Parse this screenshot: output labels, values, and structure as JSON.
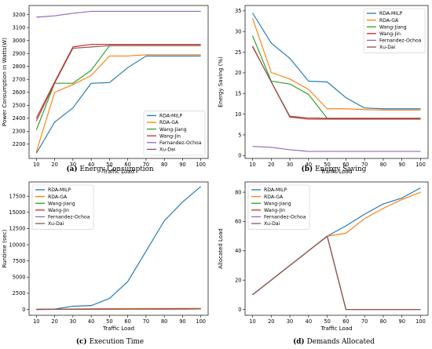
{
  "series_colors": {
    "RDA-MILP": "#1f77b4",
    "RDA-GA": "#ff7f0e",
    "Wang-Jiang": "#2ca02c",
    "Wang-Jin": "#d62728",
    "Fernandez-Ochoa": "#9467bd",
    "Xu-Dai": "#8c564b"
  },
  "chart_data": [
    {
      "type": "line",
      "caption_letter": "(a)",
      "caption_text": "Energy Consumption",
      "xlabel": "Traffic Load",
      "ylabel": "Power Consumption in Watts(W)",
      "x": [
        10,
        20,
        30,
        40,
        50,
        60,
        70,
        80,
        90,
        100
      ],
      "xlim": [
        6,
        104
      ],
      "ylim": [
        2090,
        3270
      ],
      "yticks": [
        2200,
        2300,
        2400,
        2500,
        2600,
        2700,
        2800,
        2900,
        3000,
        3100,
        3200
      ],
      "legend_position": "lower right",
      "series": [
        {
          "name": "RDA-MILP",
          "values": [
            2130,
            2370,
            2480,
            2670,
            2675,
            2790,
            2880,
            2880,
            2880,
            2880
          ]
        },
        {
          "name": "RDA-GA",
          "values": [
            2140,
            2600,
            2660,
            2730,
            2880,
            2880,
            2890,
            2890,
            2890,
            2890
          ]
        },
        {
          "name": "Wang-Jiang",
          "values": [
            2310,
            2670,
            2670,
            2770,
            2960,
            2960,
            2960,
            2960,
            2960,
            2960
          ]
        },
        {
          "name": "Wang-Jin",
          "values": [
            2400,
            2680,
            2950,
            2970,
            2970,
            2970,
            2970,
            2970,
            2970,
            2970
          ]
        },
        {
          "name": "Fernandez-Ochoa",
          "values": [
            3180,
            3190,
            3210,
            3225,
            3225,
            3225,
            3225,
            3225,
            3225,
            3225
          ]
        },
        {
          "name": "Xu-Dai",
          "values": [
            2380,
            2670,
            2940,
            2950,
            2960,
            2960,
            2960,
            2960,
            2960,
            2960
          ]
        }
      ]
    },
    {
      "type": "line",
      "caption_letter": "(b)",
      "caption_text": "Energy Saving",
      "xlabel": "Traffic Load",
      "ylabel": "Energy Saving (%)",
      "x": [
        10,
        20,
        30,
        40,
        50,
        60,
        70,
        80,
        90,
        100
      ],
      "xlim": [
        6,
        104
      ],
      "ylim": [
        -0.7,
        36.3
      ],
      "yticks": [
        0,
        5,
        10,
        15,
        20,
        25,
        30,
        35
      ],
      "legend_position": "upper right",
      "series": [
        {
          "name": "RDA-MILP",
          "values": [
            34.5,
            27.2,
            23.5,
            18.0,
            17.8,
            14.0,
            11.5,
            11.3,
            11.3,
            11.3
          ]
        },
        {
          "name": "RDA-GA",
          "values": [
            33.2,
            20.1,
            18.5,
            16.0,
            11.3,
            11.3,
            11.1,
            11.0,
            11.0,
            11.0
          ]
        },
        {
          "name": "Wang-Jiang",
          "values": [
            29.0,
            18.0,
            17.3,
            14.8,
            9.0,
            9.0,
            9.0,
            9.0,
            9.0,
            9.0
          ]
        },
        {
          "name": "Wang-Jin",
          "values": [
            26.5,
            17.8,
            9.3,
            8.8,
            8.8,
            8.8,
            8.8,
            8.8,
            8.8,
            8.8
          ]
        },
        {
          "name": "Fernandez-Ochoa",
          "values": [
            2.2,
            2.0,
            1.4,
            1.0,
            1.0,
            1.0,
            1.0,
            1.0,
            1.0,
            1.0
          ]
        },
        {
          "name": "Xu-Dai",
          "values": [
            26.3,
            17.9,
            9.5,
            9.1,
            9.0,
            9.0,
            9.0,
            9.0,
            9.0,
            9.0
          ]
        }
      ]
    },
    {
      "type": "line",
      "caption_letter": "(c)",
      "caption_text": "Execution Time",
      "xlabel": "Traffic Load",
      "ylabel": "Runtime (sec)",
      "x": [
        10,
        20,
        30,
        40,
        50,
        60,
        70,
        80,
        90,
        100
      ],
      "xlim": [
        6,
        104
      ],
      "ylim": [
        -900,
        19700
      ],
      "yticks": [
        0,
        2500,
        5000,
        7500,
        10000,
        12500,
        15000,
        17500
      ],
      "legend_position": "upper left",
      "series": [
        {
          "name": "RDA-MILP",
          "values": [
            20,
            60,
            500,
            600,
            1700,
            4300,
            9000,
            13700,
            16600,
            19000
          ]
        },
        {
          "name": "RDA-GA",
          "values": [
            20,
            40,
            80,
            110,
            140,
            140,
            150,
            150,
            160,
            160
          ]
        },
        {
          "name": "Wang-Jiang",
          "values": [
            10,
            20,
            30,
            40,
            60,
            60,
            70,
            70,
            80,
            80
          ]
        },
        {
          "name": "Wang-Jin",
          "values": [
            10,
            20,
            30,
            40,
            50,
            60,
            60,
            70,
            70,
            80
          ]
        },
        {
          "name": "Fernandez-Ochoa",
          "values": [
            10,
            20,
            30,
            40,
            50,
            60,
            60,
            70,
            70,
            80
          ]
        },
        {
          "name": "Xu-Dai",
          "values": [
            10,
            20,
            30,
            40,
            50,
            60,
            60,
            70,
            70,
            80
          ]
        }
      ]
    },
    {
      "type": "line",
      "caption_letter": "(d)",
      "caption_text": "Demands Allocated",
      "xlabel": "Traffic Load",
      "ylabel": "Allocated Load",
      "x": [
        10,
        20,
        30,
        40,
        50,
        60,
        70,
        80,
        90,
        100
      ],
      "xlim": [
        6,
        104
      ],
      "ylim": [
        -4,
        87
      ],
      "yticks": [
        0,
        20,
        40,
        60,
        80
      ],
      "legend_position": "upper left",
      "series": [
        {
          "name": "RDA-MILP",
          "values": [
            10,
            20,
            30,
            40,
            50,
            57,
            65,
            72,
            76,
            83
          ]
        },
        {
          "name": "RDA-GA",
          "values": [
            10,
            20,
            30,
            40,
            50,
            52,
            62,
            69,
            75,
            80
          ]
        },
        {
          "name": "Wang-Jiang",
          "values": [
            10,
            20,
            30,
            40,
            50,
            0,
            0,
            0,
            0,
            0
          ]
        },
        {
          "name": "Wang-Jin",
          "values": [
            10,
            20,
            30,
            40,
            50,
            0,
            0,
            0,
            0,
            0
          ]
        },
        {
          "name": "Fernandez-Ochoa",
          "values": [
            10,
            20,
            30,
            40,
            50,
            0,
            0,
            0,
            0,
            0
          ]
        },
        {
          "name": "Xu-Dai",
          "values": [
            10,
            20,
            30,
            40,
            50,
            0,
            0,
            0,
            0,
            0
          ]
        }
      ]
    }
  ]
}
